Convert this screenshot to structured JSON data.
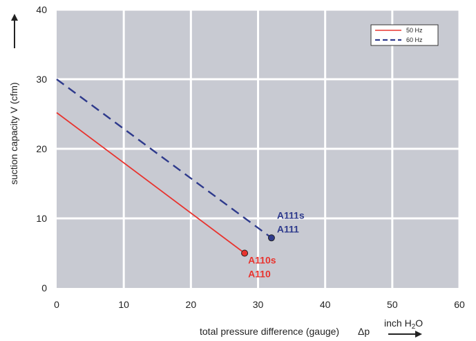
{
  "chart_data": {
    "type": "line",
    "xlabel": "total pressure difference (gauge)",
    "xlabel_symbol": "Δp",
    "xunit": "inch H",
    "xunit_sub": "2",
    "xunit_tail": "O",
    "ylabel": "suction capacity V (cfm)",
    "xlim": [
      0,
      60
    ],
    "ylim": [
      0,
      40
    ],
    "xticks": [
      0,
      10,
      20,
      30,
      40,
      50,
      60
    ],
    "yticks": [
      0,
      10,
      20,
      30,
      40
    ],
    "grid": true,
    "legend_position": "top-right",
    "plot_background": "#c8cad2",
    "series": [
      {
        "name": "50 Hz",
        "color": "#e8332e",
        "dash": "solid",
        "x": [
          0,
          28
        ],
        "y": [
          25.2,
          5.0
        ],
        "end_marker": true,
        "labels": [
          "A110s",
          "A110"
        ]
      },
      {
        "name": "60 Hz",
        "color": "#2e3a8c",
        "dash": "dashed",
        "x": [
          0,
          32
        ],
        "y": [
          30.0,
          7.2
        ],
        "end_marker": true,
        "labels": [
          "A111s",
          "A111"
        ]
      }
    ]
  }
}
